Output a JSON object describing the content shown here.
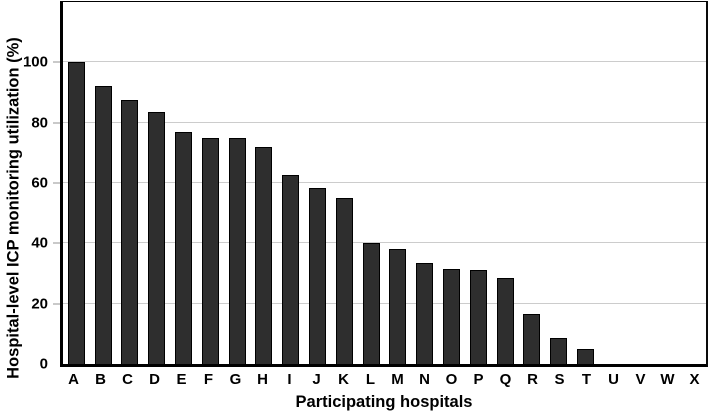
{
  "chart_data": {
    "type": "bar",
    "title": "",
    "xlabel": "Participating hospitals",
    "ylabel": "Hospital-level ICP monitoring utilization (%)",
    "categories": [
      "A",
      "B",
      "C",
      "D",
      "E",
      "F",
      "G",
      "H",
      "I",
      "J",
      "K",
      "L",
      "M",
      "N",
      "O",
      "P",
      "Q",
      "R",
      "S",
      "T",
      "U",
      "V",
      "W",
      "X"
    ],
    "values": [
      100,
      92,
      87.5,
      83.5,
      77,
      75,
      75,
      72,
      62.5,
      58.5,
      55,
      40,
      38,
      33.5,
      31.5,
      31,
      28.5,
      16.5,
      8.5,
      5,
      0,
      0,
      0,
      0
    ],
    "y_ticks": [
      0,
      20,
      40,
      60,
      80,
      100
    ],
    "ylim": [
      0,
      120
    ],
    "grid": "horizontal-only",
    "legend_position": "none",
    "colors": {
      "bar_fill": "#2e2e2e",
      "bar_border": "#000000",
      "gridline": "#cccccc",
      "tick_mark": "#c9c9c9",
      "axis": "#000000",
      "background": "#ffffff",
      "text": "#000000"
    }
  }
}
